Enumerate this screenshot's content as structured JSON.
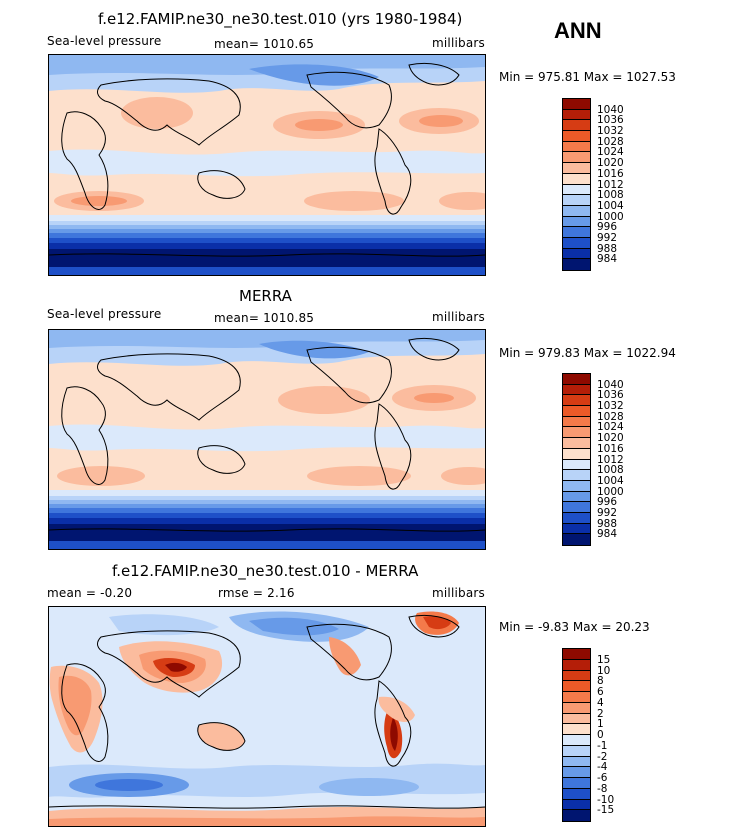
{
  "season": "ANN",
  "panels": [
    {
      "title": "f.e12.FAMIP.ne30_ne30.test.010 (yrs 1980-1984)",
      "left_label": "Sea-level pressure",
      "center_label": "mean=  1010.65",
      "right_label": "millibars",
      "minmax": "Min = 975.81 Max = 1027.53"
    },
    {
      "title": "MERRA",
      "left_label": "Sea-level pressure",
      "center_label": "mean=  1010.85",
      "right_label": "millibars",
      "minmax": "Min = 979.83 Max = 1022.94"
    },
    {
      "title": "f.e12.FAMIP.ne30_ne30.test.010 - MERRA",
      "left_label": "mean =   -0.20",
      "center_label": "rmse =    2.16",
      "right_label": "millibars",
      "minmax": "Min =  -9.83 Max =  20.23"
    }
  ],
  "chart_data": [
    {
      "type": "heatmap",
      "title": "f.e12.FAMIP.ne30_ne30.test.010 (yrs 1980-1984)",
      "variable": "Sea-level pressure",
      "units": "millibars",
      "mean": 1010.65,
      "min": 975.81,
      "max": 1027.53,
      "colorbar_levels": [
        "1040",
        "1036",
        "1032",
        "1028",
        "1024",
        "1020",
        "1016",
        "1012",
        "1008",
        "1004",
        "1000",
        "996",
        "992",
        "988",
        "984"
      ],
      "colorbar_colors": [
        "#8e0a00",
        "#b41e08",
        "#d63c14",
        "#ec5a28",
        "#f47a4a",
        "#f89a72",
        "#fbbc9e",
        "#fde0cc",
        "#dbe9fb",
        "#b8d3f8",
        "#8fb8f1",
        "#679ae8",
        "#3f76dc",
        "#1e50c8",
        "#0a2fa8",
        "#001570"
      ]
    },
    {
      "type": "heatmap",
      "title": "MERRA",
      "variable": "Sea-level pressure",
      "units": "millibars",
      "mean": 1010.85,
      "min": 979.83,
      "max": 1022.94,
      "colorbar_levels": [
        "1040",
        "1036",
        "1032",
        "1028",
        "1024",
        "1020",
        "1016",
        "1012",
        "1008",
        "1004",
        "1000",
        "996",
        "992",
        "988",
        "984"
      ],
      "colorbar_colors": [
        "#8e0a00",
        "#b41e08",
        "#d63c14",
        "#ec5a28",
        "#f47a4a",
        "#f89a72",
        "#fbbc9e",
        "#fde0cc",
        "#dbe9fb",
        "#b8d3f8",
        "#8fb8f1",
        "#679ae8",
        "#3f76dc",
        "#1e50c8",
        "#0a2fa8",
        "#001570"
      ]
    },
    {
      "type": "heatmap",
      "title": "f.e12.FAMIP.ne30_ne30.test.010 - MERRA",
      "units": "millibars",
      "mean": -0.2,
      "rmse": 2.16,
      "min": -9.83,
      "max": 20.23,
      "colorbar_levels": [
        "15",
        "10",
        "8",
        "6",
        "4",
        "2",
        "1",
        "0",
        "-1",
        "-2",
        "-4",
        "-6",
        "-8",
        "-10",
        "-15"
      ],
      "colorbar_colors": [
        "#8e0a00",
        "#b41e08",
        "#d63c14",
        "#ec5a28",
        "#f47a4a",
        "#f89a72",
        "#fbbc9e",
        "#fde0cc",
        "#dbe9fb",
        "#b8d3f8",
        "#8fb8f1",
        "#679ae8",
        "#3f76dc",
        "#1e50c8",
        "#0a2fa8",
        "#001570"
      ]
    }
  ]
}
